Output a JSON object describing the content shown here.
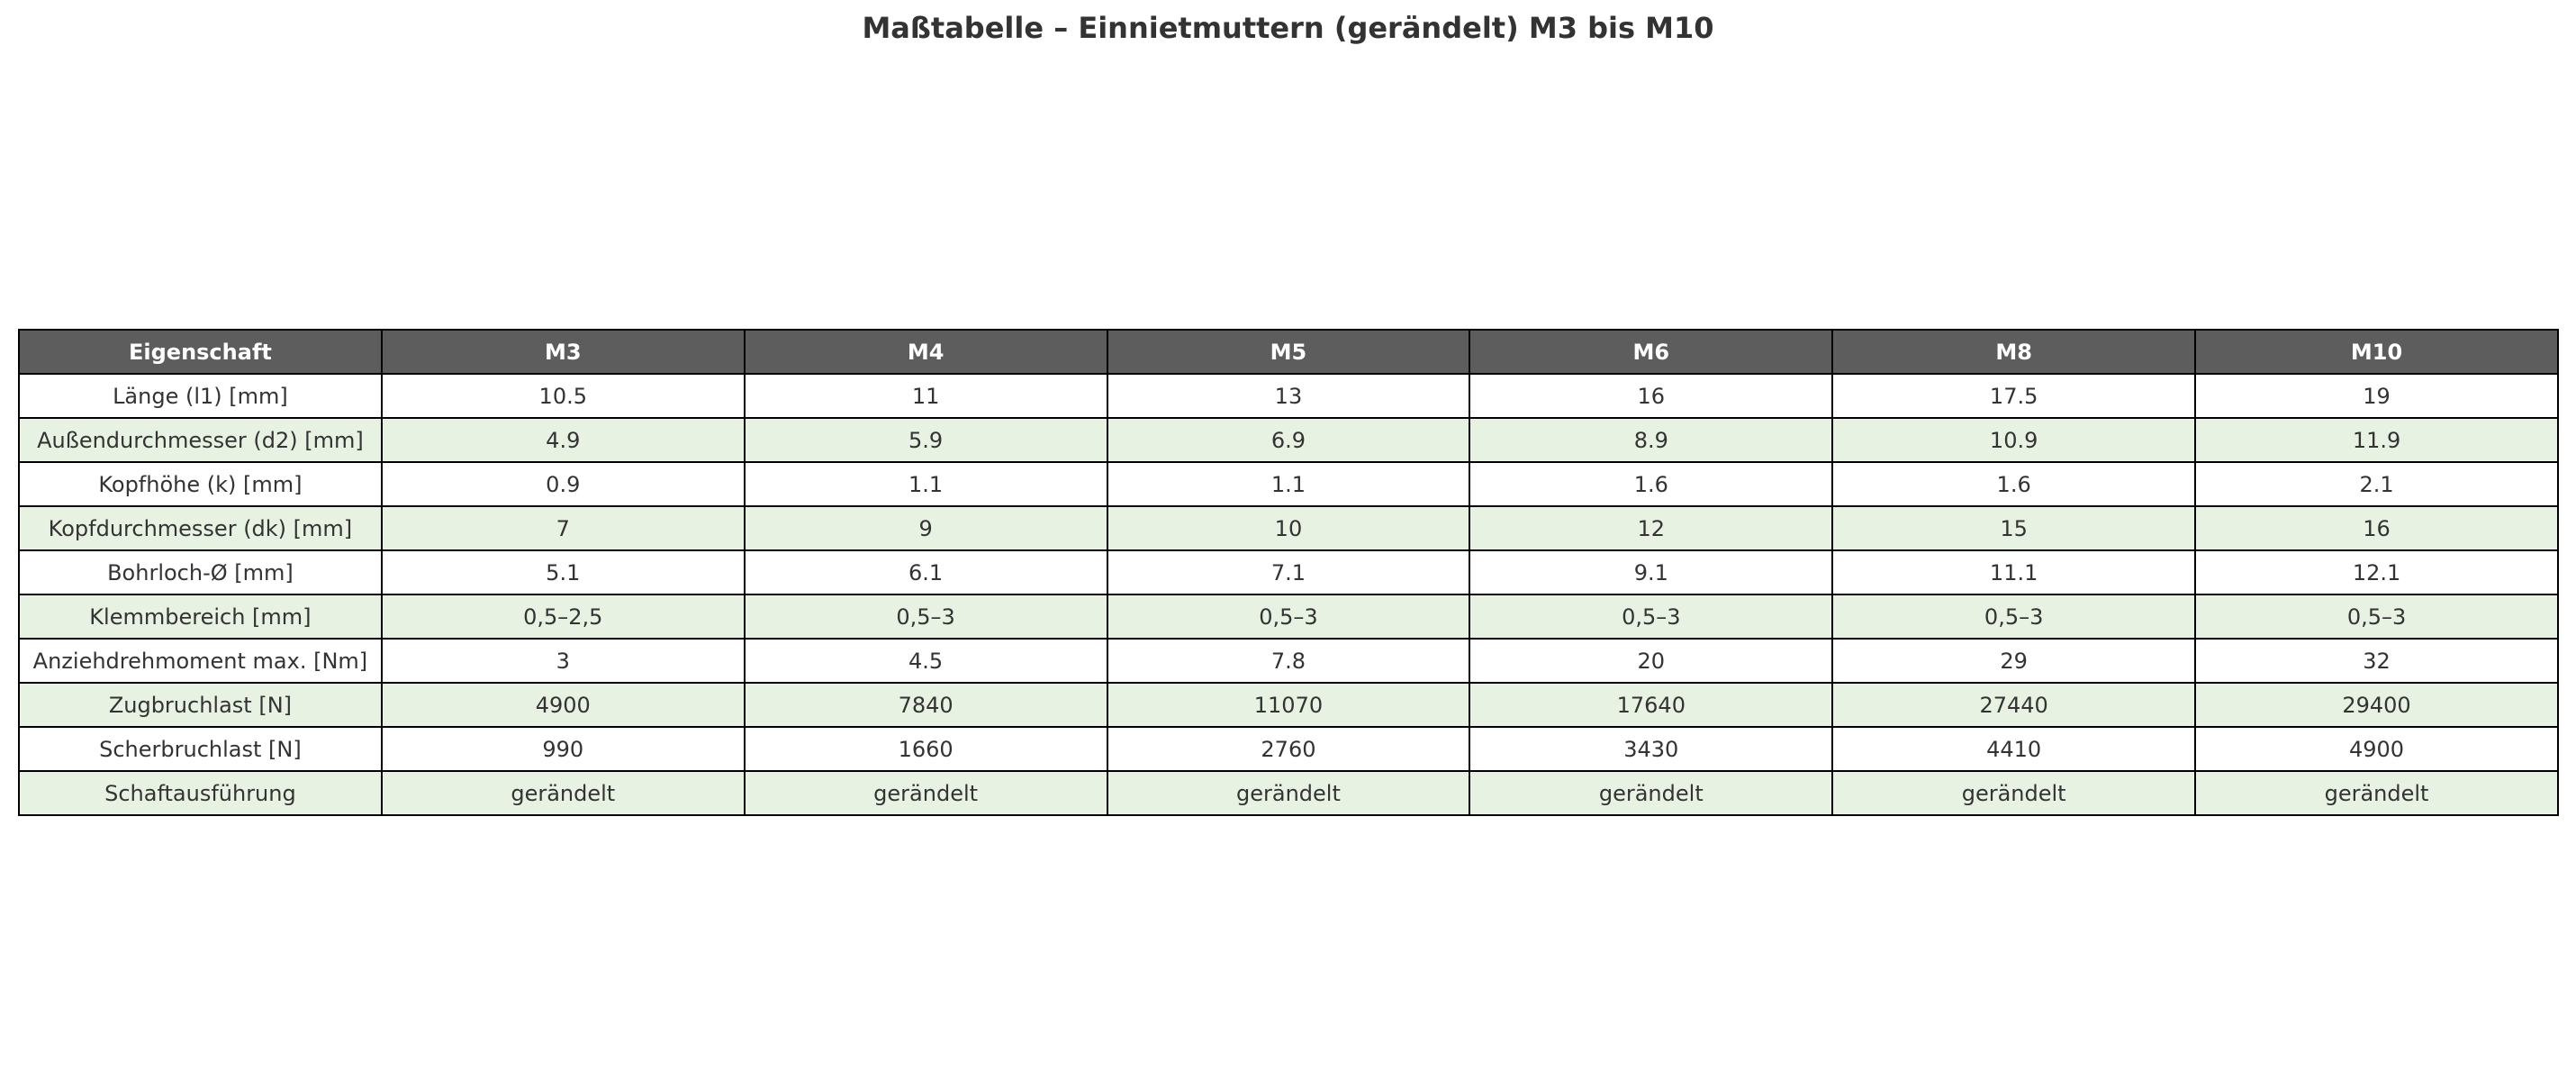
{
  "title": "Maßtabelle – Einnietmuttern (gerändelt) M3 bis M10",
  "colors": {
    "header_bg": "#5d5d5d",
    "alt_row_bg": "#e8f2e3"
  },
  "columns": [
    "Eigenschaft",
    "M3",
    "M4",
    "M5",
    "M6",
    "M8",
    "M10"
  ],
  "rows": [
    [
      "Länge (l1) [mm]",
      "10.5",
      "11",
      "13",
      "16",
      "17.5",
      "19"
    ],
    [
      "Außendurchmesser (d2) [mm]",
      "4.9",
      "5.9",
      "6.9",
      "8.9",
      "10.9",
      "11.9"
    ],
    [
      "Kopfhöhe (k) [mm]",
      "0.9",
      "1.1",
      "1.1",
      "1.6",
      "1.6",
      "2.1"
    ],
    [
      "Kopfdurchmesser (dk) [mm]",
      "7",
      "9",
      "10",
      "12",
      "15",
      "16"
    ],
    [
      "Bohrloch-Ø [mm]",
      "5.1",
      "6.1",
      "7.1",
      "9.1",
      "11.1",
      "12.1"
    ],
    [
      "Klemmbereich [mm]",
      "0,5–2,5",
      "0,5–3",
      "0,5–3",
      "0,5–3",
      "0,5–3",
      "0,5–3"
    ],
    [
      "Anziehdrehmoment max. [Nm]",
      "3",
      "4.5",
      "7.8",
      "20",
      "29",
      "32"
    ],
    [
      "Zugbruchlast [N]",
      "4900",
      "7840",
      "11070",
      "17640",
      "27440",
      "29400"
    ],
    [
      "Scherbruchlast [N]",
      "990",
      "1660",
      "2760",
      "3430",
      "4410",
      "4900"
    ],
    [
      "Schaftausführung",
      "gerändelt",
      "gerändelt",
      "gerändelt",
      "gerändelt",
      "gerändelt",
      "gerändelt"
    ]
  ]
}
